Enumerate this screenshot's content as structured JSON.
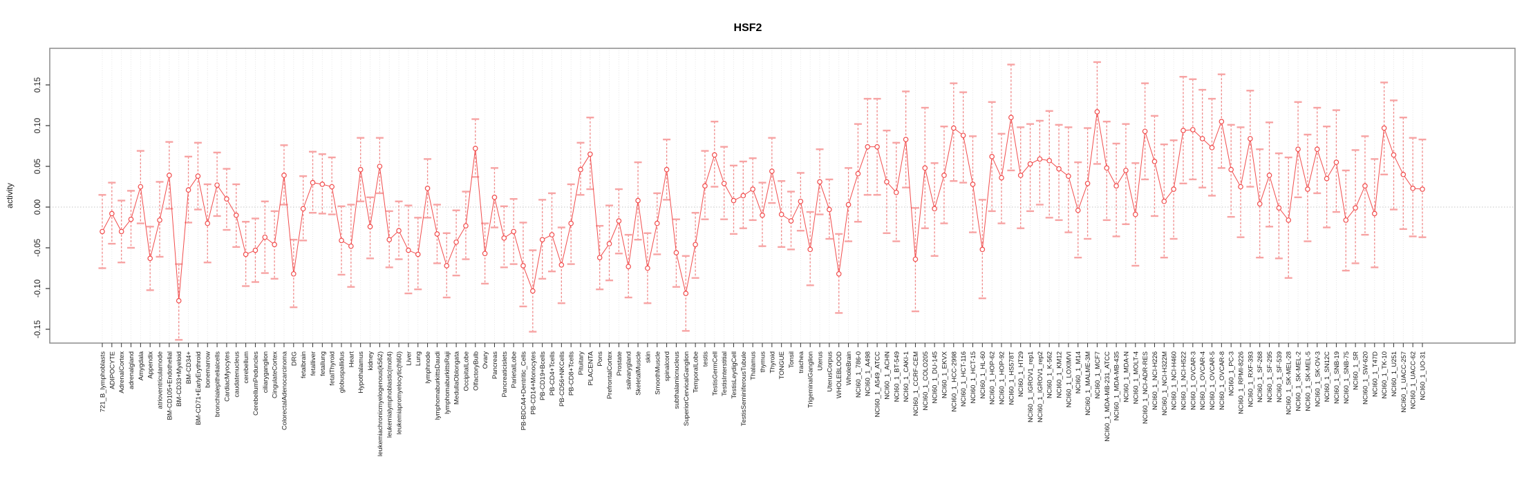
{
  "chart_data": {
    "type": "scatter",
    "subtype": "errorbar-profile",
    "title": "HSF2",
    "xlabel": "",
    "ylabel": "activity",
    "ylim": [
      -0.17,
      0.19
    ],
    "yticks": [
      0.15,
      0.1,
      0.05,
      0.0,
      -0.05,
      -0.1,
      -0.15
    ],
    "ytick_labels": [
      "0.15",
      "0.10",
      "0.05",
      "0.00",
      "-0.05",
      "-0.10",
      "-0.15"
    ],
    "grid": "vertical-dotted-per-category, dotted zero line",
    "legend": "none",
    "marker": "open-circle",
    "categories": [
      "721_B_lymphoblasts",
      "ADIPOCYTE",
      "AdrenalCortex",
      "adrenalgland",
      "Amygdala",
      "Appendix",
      "atrioventricularnode",
      "BM-CD105+Endothelial",
      "BM-CD33+Myeloid",
      "BM-CD34+",
      "BM-CD71+EarlyErythroid",
      "bonemarrow",
      "bronchialepithelialcells",
      "CardiacMyocytes",
      "caudatenucleus",
      "cerebellum",
      "CerebellumPeduncles",
      "ciliaryganglion",
      "CingulateCortex",
      "ColorectalAdenocarcinoma",
      "DRG",
      "fetalbrain",
      "fetalliver",
      "fetallung",
      "fetalThyroid",
      "globuspallidus",
      "Heart",
      "Hypothalamus",
      "kidney",
      "leukemiachronicmyelogenous(k562)",
      "leukemialymphoblastic(molt4)",
      "leukemiapromyelocytic(hl60)",
      "Liver",
      "Lung",
      "lymphnode",
      "lymphomaburkittsDaudi",
      "lymphomaburkittsRaji",
      "MedullaOblongata",
      "OccipitalLobe",
      "OlfactoryBulb",
      "Ovary",
      "Pancreas",
      "Pancreaticislets",
      "ParietalLobe",
      "PB-BDCA4+Dentritic_Cells",
      "PB-CD14+Monocytes",
      "PB-CD19+Bcells",
      "PB-CD4+Tcells",
      "PB-CD56+NKCells",
      "PB-CD8+Tcells",
      "Pituitary",
      "PLACENTA",
      "Pons",
      "PrefrontalCortex",
      "Prostate",
      "salivarygland",
      "SkeletalMuscle",
      "skin",
      "SmoothMuscle",
      "spinalcord",
      "subthalamicnucleus",
      "SuperiorCervicalGanglion",
      "TemporalLobe",
      "testis",
      "TestisGermCell",
      "TestisInterstitial",
      "TestisLeydigCell",
      "TestisSeminiferousTubule",
      "Thalamus",
      "thymus",
      "Thyroid",
      "TONGUE",
      "Tonsil",
      "trachea",
      "TrigeminalGanglion",
      "Uterus",
      "UterusCorpus",
      "WHOLEBLOOD",
      "WholeBrain",
      "NCI60_1_786-0",
      "NCI60_1_A498",
      "NCI60_1_A549_ATCC",
      "NCI60_1_ACHN",
      "NCI60_1_BT-549",
      "NCI60_1_CAKI-1",
      "NCI60_1_CCRF-CEM",
      "NCI60_1_COLO205",
      "NCI60_1_DU-145",
      "NCI60_1_EKVX",
      "NCI60_1_HCC-2998",
      "NCI60_1_HCT-116",
      "NCI60_1_HCT-15",
      "NCI60_1_HL-60",
      "NCI60_1_HOP-62",
      "NCI60_1_HOP-92",
      "NCI60_1_HS578T",
      "NCI60_1_HT29",
      "NCI60_1_IGROV1_rep1",
      "NCI60_1_IGROV1_rep2",
      "NCI60_1_K-562",
      "NCI60_1_KM12",
      "NCI60_1_LOXIMVI",
      "NCI60_1_M14",
      "NCI60_1_MALME-3M",
      "NCI60_1_MCF7",
      "NCI60_1_MDA-MB-231_ATCC",
      "NCI60_1_MDA-MB-435",
      "NCI60_1_MDA-N",
      "NCI60_1_MOLT-4",
      "NCI60_1_NCI-ADR-RES",
      "NCI60_1_NCI-H226",
      "NCI60_1_NCI-H322M",
      "NCI60_1_NCI-H460",
      "NCI60_1_NCI-H522",
      "NCI60_1_OVCAR-3",
      "NCI60_1_OVCAR-4",
      "NCI60_1_OVCAR-5",
      "NCI60_1_OVCAR-8",
      "NCI60_1_PC-3",
      "NCI60_1_RPMI-8226",
      "NCI60_1_RXF-393",
      "NCI60_1_SF-268",
      "NCI60_1_SF-295",
      "NCI60_1_SF-539",
      "NCI60_1_SK-MEL-28",
      "NCI60_1_SK-MEL-2",
      "NCI60_1_SK-MEL-5",
      "NCI60_1_SK-OV-3",
      "NCI60_1_SN12C",
      "NCI60_1_SNB-19",
      "NCI60_1_SNB-75",
      "NCI60_1_SR",
      "NCI60_1_SW-620",
      "NCI60_1_T47D",
      "NCI60_1_TK-10",
      "NCI60_1_U251",
      "NCI60_1_UACC-257",
      "NCI60_1_UACC-62",
      "NCI60_1_UO-31"
    ],
    "values": [
      -0.03,
      -0.008,
      -0.03,
      -0.015,
      0.025,
      -0.063,
      -0.016,
      0.039,
      -0.115,
      0.021,
      0.038,
      -0.02,
      0.027,
      0.01,
      -0.01,
      -0.058,
      -0.053,
      -0.037,
      -0.046,
      0.039,
      -0.082,
      -0.002,
      0.03,
      0.028,
      0.025,
      -0.041,
      -0.048,
      0.046,
      -0.024,
      0.05,
      -0.04,
      -0.029,
      -0.053,
      -0.058,
      0.023,
      -0.033,
      -0.072,
      -0.043,
      -0.023,
      0.072,
      -0.057,
      0.012,
      -0.038,
      -0.03,
      -0.072,
      -0.103,
      -0.04,
      -0.034,
      -0.071,
      -0.02,
      0.046,
      0.065,
      -0.062,
      -0.045,
      -0.017,
      -0.073,
      0.008,
      -0.075,
      -0.02,
      0.046,
      -0.056,
      -0.106,
      -0.046,
      0.026,
      0.064,
      0.029,
      0.008,
      0.014,
      0.022,
      -0.01,
      0.044,
      -0.009,
      -0.017,
      0.007,
      -0.052,
      0.031,
      -0.003,
      -0.082,
      0.003,
      0.041,
      0.074,
      0.074,
      0.031,
      0.018,
      0.083,
      -0.064,
      0.048,
      -0.002,
      0.039,
      0.097,
      0.088,
      0.028,
      -0.052,
      0.062,
      0.036,
      0.11,
      0.039,
      0.053,
      0.059,
      0.057,
      0.047,
      0.038,
      -0.004,
      0.029,
      0.117,
      0.048,
      0.026,
      0.045,
      -0.009,
      0.093,
      0.056,
      0.007,
      0.022,
      0.094,
      0.095,
      0.084,
      0.073,
      0.105,
      0.046,
      0.025,
      0.084,
      0.004,
      0.039,
      -0.001,
      -0.016,
      0.071,
      0.022,
      0.071,
      0.035,
      0.055,
      -0.016,
      -0.001,
      0.026,
      -0.008,
      0.097,
      0.064,
      0.04,
      0.023,
      0.022
    ],
    "err_lo": [
      -0.075,
      -0.045,
      -0.068,
      -0.05,
      -0.02,
      -0.102,
      -0.061,
      -0.002,
      -0.163,
      -0.019,
      -0.003,
      -0.068,
      -0.011,
      -0.028,
      -0.049,
      -0.097,
      -0.092,
      -0.081,
      -0.088,
      0.003,
      -0.123,
      -0.041,
      -0.007,
      -0.008,
      -0.009,
      -0.083,
      -0.098,
      0.007,
      -0.063,
      0.017,
      -0.074,
      -0.064,
      -0.106,
      -0.101,
      -0.013,
      -0.069,
      -0.111,
      -0.084,
      -0.064,
      0.037,
      -0.094,
      -0.025,
      -0.074,
      -0.07,
      -0.122,
      -0.153,
      -0.088,
      -0.079,
      -0.118,
      -0.07,
      0.015,
      0.022,
      -0.101,
      -0.09,
      -0.057,
      -0.111,
      -0.04,
      -0.118,
      -0.058,
      0.009,
      -0.098,
      -0.152,
      -0.087,
      -0.015,
      0.025,
      -0.015,
      -0.033,
      -0.026,
      -0.016,
      -0.048,
      0.005,
      -0.049,
      -0.052,
      -0.029,
      -0.096,
      -0.009,
      -0.039,
      -0.13,
      -0.042,
      -0.018,
      0.015,
      0.015,
      -0.032,
      -0.042,
      0.024,
      -0.128,
      -0.026,
      -0.06,
      -0.02,
      0.032,
      0.03,
      -0.031,
      -0.112,
      -0.005,
      -0.02,
      0.045,
      -0.026,
      -0.005,
      0.003,
      -0.013,
      -0.016,
      -0.031,
      -0.062,
      -0.039,
      0.053,
      -0.016,
      -0.036,
      -0.021,
      -0.072,
      0.034,
      -0.011,
      -0.062,
      -0.039,
      0.029,
      0.034,
      0.024,
      0.014,
      0.048,
      -0.012,
      -0.037,
      0.025,
      -0.062,
      -0.024,
      -0.063,
      -0.087,
      0.012,
      -0.042,
      0.017,
      -0.025,
      -0.006,
      -0.078,
      -0.069,
      -0.034,
      -0.074,
      0.04,
      -0.003,
      -0.027,
      -0.036,
      -0.037
    ],
    "err_hi": [
      0.015,
      0.03,
      0.008,
      0.02,
      0.069,
      -0.024,
      0.031,
      0.08,
      -0.07,
      0.062,
      0.079,
      0.028,
      0.067,
      0.047,
      0.028,
      -0.018,
      -0.014,
      0.007,
      -0.005,
      0.076,
      -0.04,
      0.038,
      0.068,
      0.065,
      0.061,
      0.001,
      0.003,
      0.085,
      0.012,
      0.085,
      -0.005,
      0.007,
      0.002,
      -0.013,
      0.059,
      0.003,
      -0.032,
      -0.004,
      0.019,
      0.108,
      -0.02,
      0.048,
      0.001,
      0.01,
      -0.019,
      -0.053,
      0.009,
      0.017,
      -0.025,
      0.028,
      0.079,
      0.11,
      -0.023,
      0.002,
      0.022,
      -0.034,
      0.055,
      -0.032,
      0.017,
      0.083,
      -0.015,
      -0.06,
      -0.007,
      0.069,
      0.105,
      0.074,
      0.051,
      0.056,
      0.06,
      0.03,
      0.085,
      0.032,
      0.019,
      0.042,
      -0.006,
      0.071,
      0.034,
      -0.033,
      0.048,
      0.102,
      0.133,
      0.133,
      0.094,
      0.079,
      0.142,
      -0.001,
      0.122,
      0.054,
      0.099,
      0.152,
      0.141,
      0.087,
      0.009,
      0.129,
      0.09,
      0.175,
      0.098,
      0.102,
      0.106,
      0.118,
      0.101,
      0.098,
      0.055,
      0.097,
      0.178,
      0.105,
      0.078,
      0.102,
      0.054,
      0.152,
      0.112,
      0.077,
      0.082,
      0.16,
      0.157,
      0.144,
      0.133,
      0.163,
      0.101,
      0.098,
      0.143,
      0.071,
      0.104,
      0.066,
      0.061,
      0.129,
      0.089,
      0.122,
      0.099,
      0.119,
      0.045,
      0.07,
      0.087,
      0.059,
      0.153,
      0.131,
      0.11,
      0.085,
      0.083
    ],
    "colors": {
      "point": "#f14b4b",
      "line": "#f14b4b",
      "whisker_stem": "#f07d7d",
      "whisker_cap": "#f7a3a3",
      "grid": "#e2e2e2",
      "zero_line": "#c4c4c4",
      "box": "#8a8a8a",
      "tick_text": "#1a1a1a",
      "background": "#ffffff"
    }
  }
}
